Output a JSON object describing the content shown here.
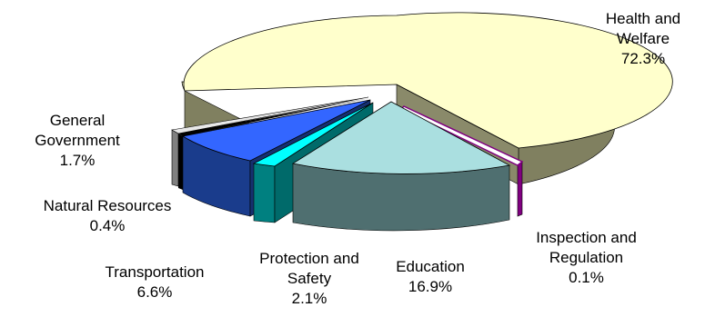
{
  "chart_data": {
    "type": "pie",
    "style": "3d-exploded",
    "unit": "%",
    "slices": [
      {
        "name_lines": [
          "Health and",
          "Welfare"
        ],
        "value_text": "72.3%",
        "value": 72.3,
        "top_color": "#ffffcc",
        "side_color": "#808060"
      },
      {
        "name_lines": [
          "Inspection and",
          "Regulation"
        ],
        "value_text": "0.1%",
        "value": 0.1,
        "top_color": "#ffffff",
        "side_color": "#800080"
      },
      {
        "name_lines": [
          "Education"
        ],
        "value_text": "16.9%",
        "value": 16.9,
        "top_color": "#aadfe0",
        "side_color": "#4f6f70"
      },
      {
        "name_lines": [
          "Protection and",
          "Safety"
        ],
        "value_text": "2.1%",
        "value": 2.1,
        "top_color": "#00ffff",
        "side_color": "#008080"
      },
      {
        "name_lines": [
          "Transportation"
        ],
        "value_text": "6.6%",
        "value": 6.6,
        "top_color": "#3366ff",
        "side_color": "#1a3c8c"
      },
      {
        "name_lines": [
          "Natural Resources"
        ],
        "value_text": "0.4%",
        "value": 0.4,
        "top_color": "#000000",
        "side_color": "#000000"
      },
      {
        "name_lines": [
          "General",
          "Government"
        ],
        "value_text": "1.7%",
        "value": 1.7,
        "top_color": "#e8e8e8",
        "side_color": "#808080"
      }
    ]
  }
}
